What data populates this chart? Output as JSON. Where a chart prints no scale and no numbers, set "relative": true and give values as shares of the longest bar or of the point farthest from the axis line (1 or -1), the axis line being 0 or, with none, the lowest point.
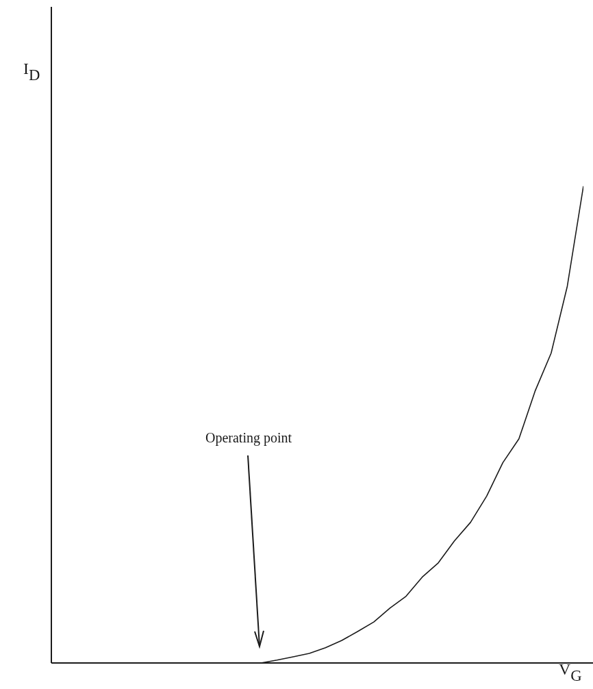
{
  "chart_data": {
    "type": "line",
    "relative": true,
    "xlabel": "V$_{G}$",
    "categories": [
      null,
      null,
      null,
      null,
      null,
      null,
      null,
      null,
      null,
      null,
      null,
      null,
      null,
      null,
      null,
      null,
      null,
      null,
      null,
      null,
      null,
      null,
      null,
      null,
      null,
      null,
      null,
      null,
      null,
      null,
      null,
      null,
      null,
      null
    ],
    "series": [
      {
        "color": "#1a1a1a",
        "values": [
          null,
          null,
          null,
          null,
          null,
          null,
          null,
          null,
          null,
          null,
          null,
          null,
          null,
          0,
          0.006,
          0.013,
          0.02,
          0.032,
          0.047,
          0.066,
          0.086,
          0.115,
          0.14,
          0.18,
          0.21,
          0.256,
          0.295,
          0.35,
          0.42,
          0.47,
          0.57,
          0.65,
          0.79,
          1
        ]
      }
    ],
    "annotations": [
      "Operating point",
      "I$_{D}$"
    ],
    "grid": false,
    "legend": false,
    "marker": "none",
    "line_style": "solid"
  }
}
